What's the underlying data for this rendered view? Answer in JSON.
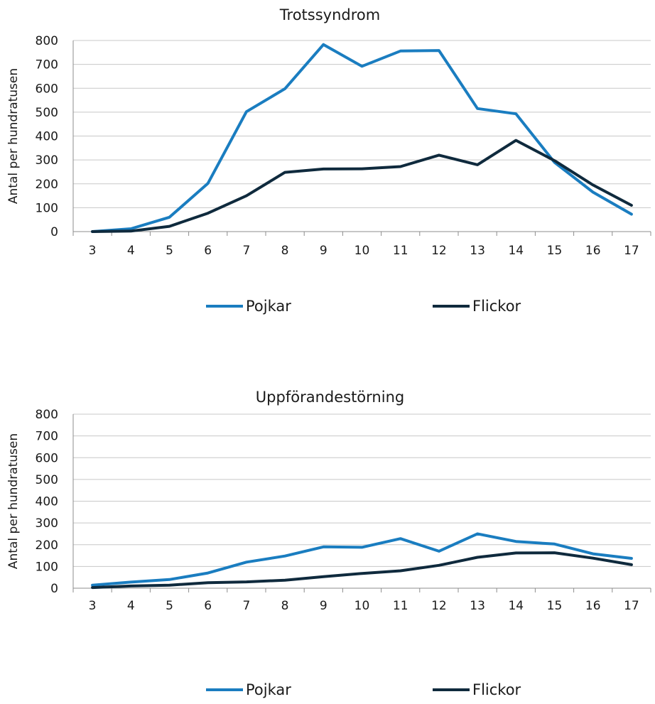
{
  "chart_data": [
    {
      "type": "line",
      "title": "Trotssyndrom",
      "xlabel": "",
      "ylabel": "Antal per hundratusen",
      "ylim": [
        0,
        800
      ],
      "yticks": [
        0,
        100,
        200,
        300,
        400,
        500,
        600,
        700,
        800
      ],
      "grid": true,
      "legend": "bottom",
      "categories": [
        "3",
        "4",
        "5",
        "6",
        "7",
        "8",
        "9",
        "10",
        "11",
        "12",
        "13",
        "14",
        "15",
        "16",
        "17"
      ],
      "series": [
        {
          "name": "Pojkar",
          "color": "#1a7dc0",
          "values": [
            0,
            12,
            60,
            202,
            502,
            598,
            783,
            692,
            756,
            758,
            515,
            493,
            290,
            165,
            73
          ]
        },
        {
          "name": "Flickor",
          "color": "#0f2a3d",
          "values": [
            0,
            2,
            22,
            77,
            150,
            248,
            262,
            263,
            272,
            320,
            280,
            382,
            297,
            195,
            110
          ]
        }
      ]
    },
    {
      "type": "line",
      "title": "Uppförandestörning",
      "xlabel": "",
      "ylabel": "Antal per hundratusen",
      "ylim": [
        0,
        800
      ],
      "yticks": [
        0,
        100,
        200,
        300,
        400,
        500,
        600,
        700,
        800
      ],
      "grid": true,
      "legend": "bottom",
      "categories": [
        "3",
        "4",
        "5",
        "6",
        "7",
        "8",
        "9",
        "10",
        "11",
        "12",
        "13",
        "14",
        "15",
        "16",
        "17"
      ],
      "series": [
        {
          "name": "Pojkar",
          "color": "#1a7dc0",
          "values": [
            14,
            28,
            40,
            70,
            120,
            148,
            190,
            188,
            228,
            170,
            250,
            215,
            203,
            158,
            137
          ]
        },
        {
          "name": "Flickor",
          "color": "#0f2a3d",
          "values": [
            3,
            10,
            14,
            25,
            29,
            37,
            53,
            68,
            80,
            105,
            142,
            162,
            163,
            138,
            108
          ]
        }
      ]
    }
  ]
}
